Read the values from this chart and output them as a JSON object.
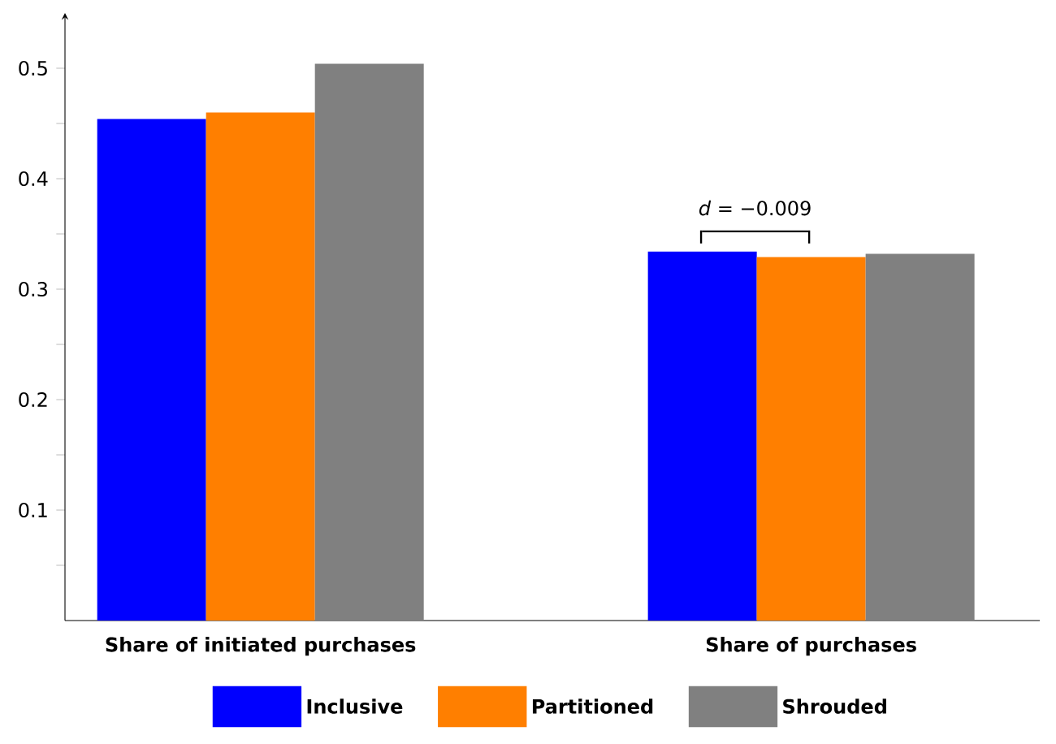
{
  "chart_data": {
    "type": "bar",
    "categories": [
      "Share of initiated purchases",
      "Share of purchases"
    ],
    "series": [
      {
        "name": "Inclusive",
        "color": "#0000ff",
        "values": [
          0.454,
          0.334
        ]
      },
      {
        "name": "Partitioned",
        "color": "#ff7f00",
        "values": [
          0.46,
          0.329
        ]
      },
      {
        "name": "Shrouded",
        "color": "#808080",
        "values": [
          0.504,
          0.332
        ]
      }
    ],
    "ylim": [
      0,
      0.55
    ],
    "yticks": [
      {
        "value": 0.05,
        "label": null
      },
      0.1,
      {
        "value": 0.15,
        "label": null
      },
      0.2,
      {
        "value": 0.25,
        "label": null
      },
      0.3,
      {
        "value": 0.35,
        "label": null
      },
      0.4,
      {
        "value": 0.45,
        "label": null
      },
      0.5
    ],
    "annotations": [
      "*d* = −0.009"
    ],
    "legend": "bottom",
    "grid": false
  }
}
